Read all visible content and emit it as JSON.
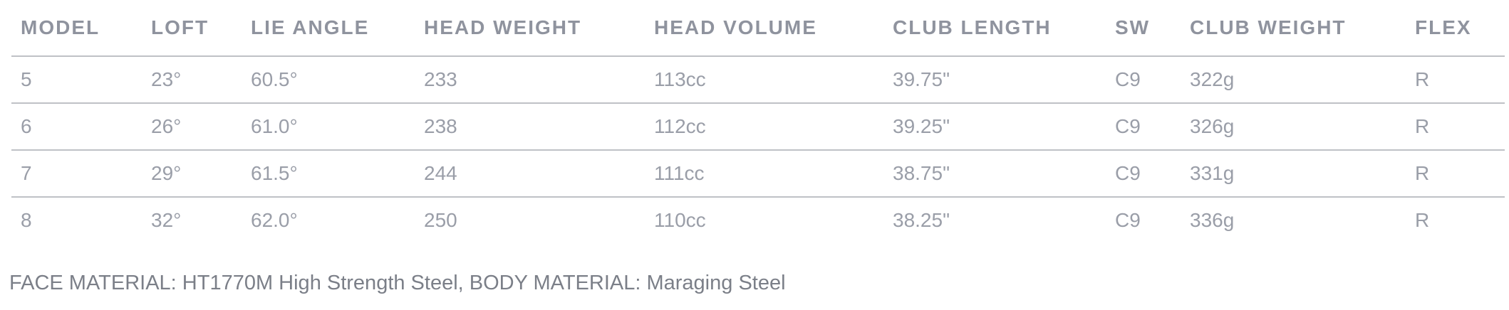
{
  "spec_table": {
    "headers": [
      "MODEL",
      "LOFT",
      "LIE ANGLE",
      "HEAD WEIGHT",
      "HEAD VOLUME",
      "CLUB LENGTH",
      "SW",
      "CLUB WEIGHT",
      "FLEX"
    ],
    "rows": [
      [
        "5",
        "23°",
        "60.5°",
        "233",
        "113cc",
        "39.75\"",
        "C9",
        "322g",
        "R"
      ],
      [
        "6",
        "26°",
        "61.0°",
        "238",
        "112cc",
        "39.25\"",
        "C9",
        "326g",
        "R"
      ],
      [
        "7",
        "29°",
        "61.5°",
        "244",
        "111cc",
        "38.75\"",
        "C9",
        "331g",
        "R"
      ],
      [
        "8",
        "32°",
        "62.0°",
        "250",
        "110cc",
        "38.25\"",
        "C9",
        "336g",
        "R"
      ]
    ]
  },
  "footnote": "FACE MATERIAL: HT1770M High Strength Steel, BODY MATERIAL: Maraging Steel"
}
